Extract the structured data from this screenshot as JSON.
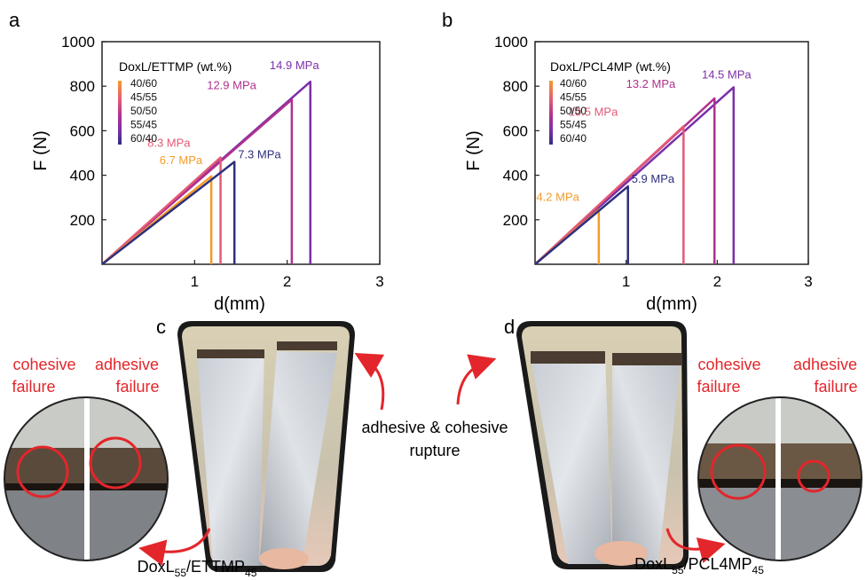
{
  "panels": {
    "a": "a",
    "b": "b",
    "c": "c",
    "d": "d"
  },
  "chart_data": [
    {
      "type": "line",
      "panel": "a",
      "xlabel": "d(mm)",
      "ylabel": "F (N)",
      "xlim": [
        0,
        3
      ],
      "ylim": [
        0,
        1000
      ],
      "xticks": [
        "1",
        "2",
        "3"
      ],
      "yticks": [
        "200",
        "400",
        "600",
        "800",
        "1000"
      ],
      "legend_title": "DoxL/ETTMP (wt.%)",
      "legend_position": "top-left",
      "series": [
        {
          "name": "40/60",
          "color": "#f59a2a",
          "peak_x": 1.18,
          "peak_y": 395,
          "label": "6.7 MPa"
        },
        {
          "name": "45/55",
          "color": "#e35a76",
          "peak_x": 1.28,
          "peak_y": 480,
          "label": "8.3 MPa"
        },
        {
          "name": "50/50",
          "color": "#b0308f",
          "peak_x": 2.05,
          "peak_y": 740,
          "label": "12.9 MPa"
        },
        {
          "name": "55/45",
          "color": "#7b2fa8",
          "peak_x": 2.25,
          "peak_y": 820,
          "label": "14.9 MPa"
        },
        {
          "name": "60/40",
          "color": "#2d2f7d",
          "peak_x": 1.43,
          "peak_y": 460,
          "label": "7.3 MPa"
        }
      ]
    },
    {
      "type": "line",
      "panel": "b",
      "xlabel": "d(mm)",
      "ylabel": "F (N)",
      "xlim": [
        0,
        3
      ],
      "ylim": [
        0,
        1000
      ],
      "xticks": [
        "1",
        "2",
        "3"
      ],
      "yticks": [
        "200",
        "400",
        "600",
        "800",
        "1000"
      ],
      "legend_title": "DoxL/PCL4MP (wt.%)",
      "legend_position": "top-left",
      "series": [
        {
          "name": "40/60",
          "color": "#f59a2a",
          "peak_x": 0.7,
          "peak_y": 245,
          "label": "4.2 MPa"
        },
        {
          "name": "45/55",
          "color": "#e35a76",
          "peak_x": 1.63,
          "peak_y": 620,
          "label": "10.5 MPa"
        },
        {
          "name": "50/50",
          "color": "#b0308f",
          "peak_x": 1.97,
          "peak_y": 745,
          "label": "13.2 MPa"
        },
        {
          "name": "55/45",
          "color": "#7b2fa8",
          "peak_x": 2.18,
          "peak_y": 795,
          "label": "14.5 MPa"
        },
        {
          "name": "60/40",
          "color": "#2d2f7d",
          "peak_x": 1.02,
          "peak_y": 350,
          "label": "5.9 MPa"
        }
      ]
    }
  ],
  "photos": {
    "cohesive": "cohesive",
    "failure": "failure",
    "adhesive": "adhesive",
    "middle_line1": "adhesive & cohesive",
    "middle_line2": "rupture",
    "caption_c_main": "DoxL",
    "caption_c_sub1": "55",
    "caption_c_mid": "/ETTMP",
    "caption_c_sub2": "45",
    "caption_d_main": "DoxL",
    "caption_d_sub1": "55",
    "caption_d_mid": "/PCL4MP",
    "caption_d_sub2": "45"
  }
}
